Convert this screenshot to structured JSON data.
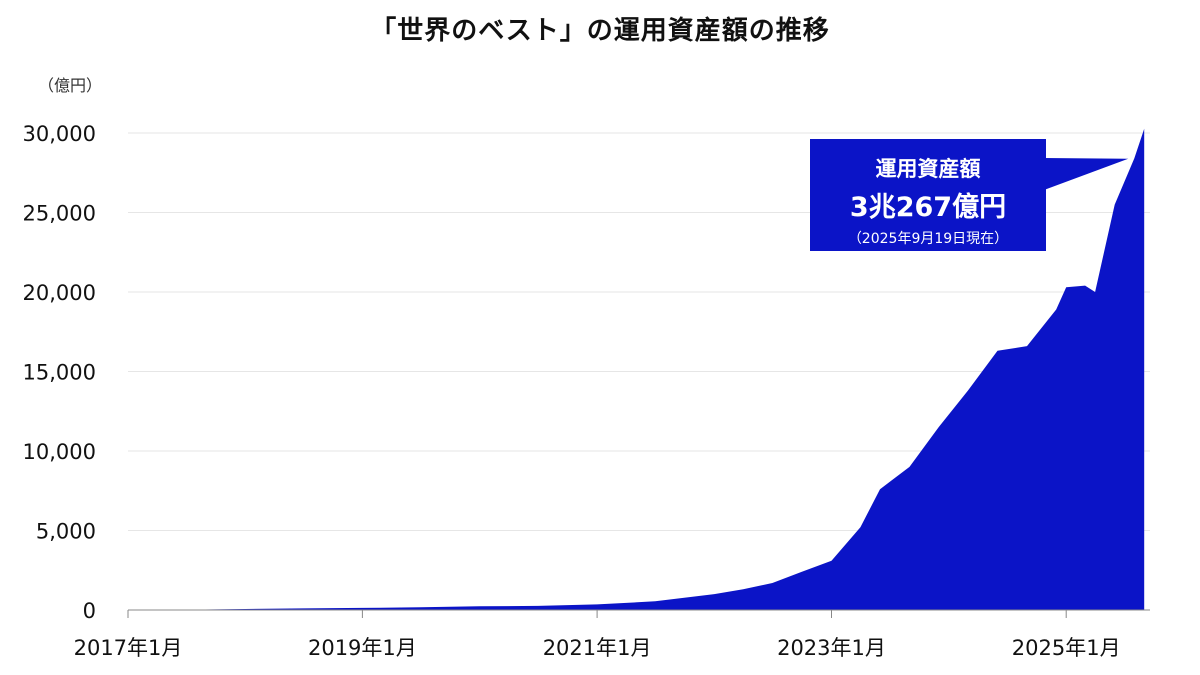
{
  "title": "「世界のベスト」の運用資産額の推移",
  "unit_label": "（億円）",
  "callout": {
    "title": "運用資産額",
    "value": "3兆267億円",
    "date": "（2025年9月19日現在）"
  },
  "colors": {
    "fill": "#0B14C7",
    "grid": "#e6e6e6",
    "axis": "#888888"
  },
  "chart_data": {
    "type": "area",
    "title": "「世界のベスト」の運用資産額の推移",
    "ylabel": "（億円）",
    "ylim": [
      0,
      30000
    ],
    "yticks": [
      "0",
      "5,000",
      "10,000",
      "15,000",
      "20,000",
      "25,000",
      "30,000"
    ],
    "ytick_values": [
      0,
      5000,
      10000,
      15000,
      20000,
      25000,
      30000
    ],
    "xticks": [
      "2017年1月",
      "2019年1月",
      "2021年1月",
      "2023年1月",
      "2025年1月"
    ],
    "xtick_dates": [
      "2017-01",
      "2019-01",
      "2021-01",
      "2023-01",
      "2025-01"
    ],
    "grid": true,
    "series": [
      {
        "x": [
          "2017-01",
          "2017-07",
          "2018-01",
          "2018-07",
          "2019-01",
          "2019-07",
          "2020-01",
          "2020-07",
          "2021-01",
          "2021-07",
          "2022-01",
          "2022-04",
          "2022-07",
          "2022-10",
          "2023-01",
          "2023-04",
          "2023-06",
          "2023-09",
          "2023-12",
          "2024-03",
          "2024-06",
          "2024-09",
          "2024-12",
          "2025-01",
          "2025-03",
          "2025-04",
          "2025-06",
          "2025-08",
          "2025-09"
        ],
        "y": [
          0,
          20,
          60,
          100,
          130,
          170,
          230,
          260,
          350,
          550,
          1000,
          1300,
          1700,
          2400,
          3100,
          5200,
          7600,
          9000,
          11500,
          13800,
          16300,
          16600,
          18900,
          20300,
          20400,
          20000,
          25500,
          28400,
          30267
        ]
      }
    ]
  }
}
